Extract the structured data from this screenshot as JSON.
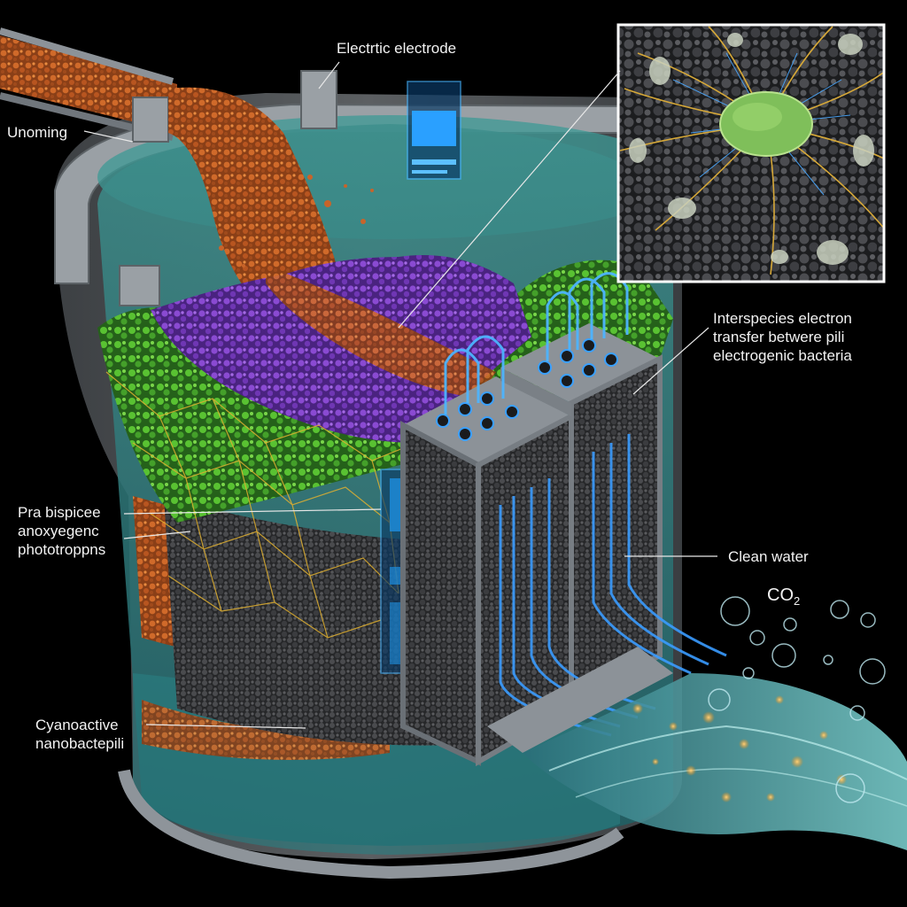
{
  "labels": {
    "electrode": "Electrtic electrode",
    "incoming": "Unoming",
    "interspecies": [
      "Interspecies electron",
      "transfer betwere pili",
      "electrogenic bacteria"
    ],
    "phototrophs": [
      "Pra bispicee",
      "anoxyegenc",
      "phototroppns"
    ],
    "clean_water": "Clean water",
    "co2_base": "CO",
    "co2_sub": "2",
    "cyanoactive": [
      "Cyanoactive",
      "nanobactepili"
    ]
  },
  "colors": {
    "background": "#000000",
    "tank": "#8c9298",
    "water": "#3aa6a0",
    "sludge": "#c8642a",
    "purple_layer": "#7b3fc4",
    "green_layer": "#4cae2c",
    "carbon_layer": "#2e2f31",
    "electrode_glow": "#3aa0ff",
    "electron_wire": "#e0b030"
  },
  "icons": {
    "inset": "bacterium-micrograph-icon",
    "bubbles": "bubble-icon"
  }
}
